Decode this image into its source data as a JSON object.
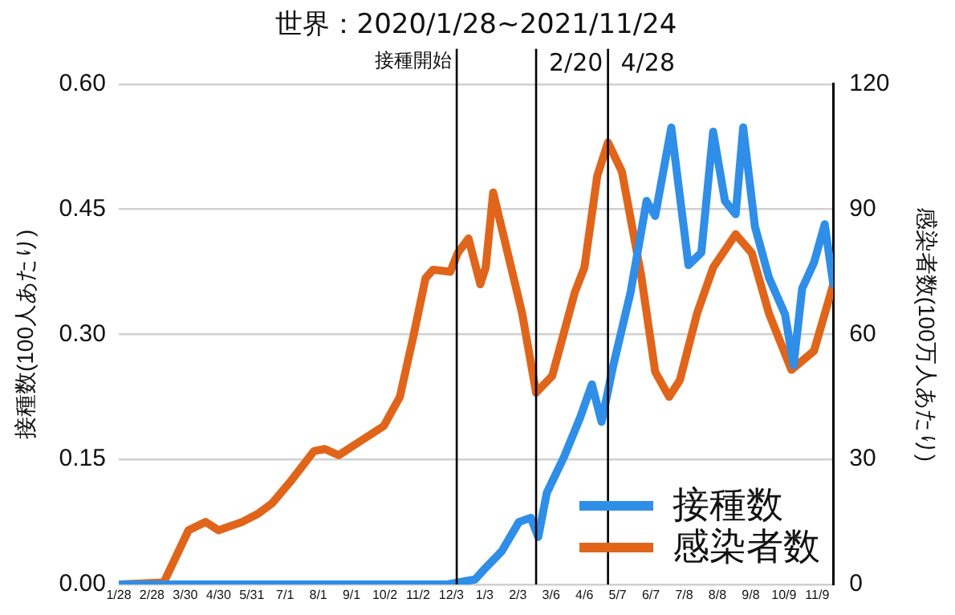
{
  "chart_data": {
    "type": "line",
    "title": "世界：2020/1/28~2021/11/24",
    "ylabel": "接種数(100人あたり)",
    "y2label": "感染者数(100万人あたり)",
    "xlim": [
      "2020-01-28",
      "2021-11-24"
    ],
    "xticks": [
      {
        "value": "2020-01-28",
        "label": "1/28"
      },
      {
        "value": "2020-02-28",
        "label": "2/28"
      },
      {
        "value": "2020-03-30",
        "label": "3/30"
      },
      {
        "value": "2020-04-30",
        "label": "4/30"
      },
      {
        "value": "2020-05-31",
        "label": "5/31"
      },
      {
        "value": "2020-07-01",
        "label": "7/1"
      },
      {
        "value": "2020-08-01",
        "label": "8/1"
      },
      {
        "value": "2020-09-01",
        "label": "9/1"
      },
      {
        "value": "2020-10-02",
        "label": "10/2"
      },
      {
        "value": "2020-11-02",
        "label": "11/2"
      },
      {
        "value": "2020-12-03",
        "label": "12/3"
      },
      {
        "value": "2021-01-03",
        "label": "1/3"
      },
      {
        "value": "2021-02-03",
        "label": "2/3"
      },
      {
        "value": "2021-03-06",
        "label": "3/6"
      },
      {
        "value": "2021-04-06",
        "label": "4/6"
      },
      {
        "value": "2021-05-07",
        "label": "5/7"
      },
      {
        "value": "2021-06-07",
        "label": "6/7"
      },
      {
        "value": "2021-07-08",
        "label": "7/8"
      },
      {
        "value": "2021-08-08",
        "label": "8/8"
      },
      {
        "value": "2021-09-08",
        "label": "9/8"
      },
      {
        "value": "2021-10-09",
        "label": "10/9"
      },
      {
        "value": "2021-11-09",
        "label": "11/9"
      }
    ],
    "ylim": [
      0,
      0.6
    ],
    "yticks": [
      {
        "value": 0,
        "label": "0.00"
      },
      {
        "value": 0.15,
        "label": "0.15"
      },
      {
        "value": 0.3,
        "label": "0.30"
      },
      {
        "value": 0.45,
        "label": "0.45"
      },
      {
        "value": 0.6,
        "label": "0.60"
      }
    ],
    "y2lim": [
      0,
      120
    ],
    "y2ticks": [
      0,
      30,
      60,
      90,
      120
    ],
    "grid": "y",
    "legend": "bottom right",
    "ref_lines": [
      {
        "axis": "x",
        "value": "2020-12-08",
        "label": "接種開始",
        "color": "#000000"
      },
      {
        "axis": "x",
        "value": "2021-02-20",
        "label": "2/20",
        "color": "#000000"
      },
      {
        "axis": "x",
        "value": "2021-04-28",
        "label": "4/28",
        "color": "#000000"
      }
    ],
    "series": [
      {
        "name": "接種数",
        "color": "#2f8ee8",
        "x": [
          "2020-01-28",
          "2020-11-29",
          "2020-12-25",
          "2021-01-04",
          "2021-01-19",
          "2021-02-04",
          "2021-02-15",
          "2021-02-22",
          "2021-03-02",
          "2021-03-18",
          "2021-04-02",
          "2021-04-13",
          "2021-04-22",
          "2021-05-03",
          "2021-05-19",
          "2021-06-03",
          "2021-06-11",
          "2021-06-26",
          "2021-07-12",
          "2021-07-24",
          "2021-08-04",
          "2021-08-15",
          "2021-08-25",
          "2021-09-01",
          "2021-09-12",
          "2021-09-25",
          "2021-10-10",
          "2021-10-18",
          "2021-10-26",
          "2021-11-06",
          "2021-11-16",
          "2021-11-24"
        ],
        "values": [
          0,
          0,
          0.006,
          0.02,
          0.04,
          0.075,
          0.08,
          0.057,
          0.11,
          0.153,
          0.2,
          0.24,
          0.195,
          0.263,
          0.35,
          0.46,
          0.442,
          0.548,
          0.383,
          0.398,
          0.543,
          0.46,
          0.444,
          0.548,
          0.429,
          0.368,
          0.324,
          0.263,
          0.355,
          0.386,
          0.432,
          0.36
        ]
      },
      {
        "name": "感染者数",
        "color": "#e0651a",
        "axis": "y2",
        "x": [
          "2020-01-28",
          "2020-03-10",
          "2020-04-02",
          "2020-04-18",
          "2020-04-30",
          "2020-05-22",
          "2020-06-06",
          "2020-06-19",
          "2020-07-07",
          "2020-07-28",
          "2020-08-07",
          "2020-08-20",
          "2020-09-07",
          "2020-10-01",
          "2020-10-16",
          "2020-10-29",
          "2020-11-09",
          "2020-11-16",
          "2020-12-02",
          "2020-12-09",
          "2020-12-19",
          "2020-12-30",
          "2021-01-04",
          "2021-01-11",
          "2021-01-25",
          "2021-02-07",
          "2021-02-20",
          "2021-03-07",
          "2021-03-28",
          "2021-04-06",
          "2021-04-18",
          "2021-04-28",
          "2021-05-11",
          "2021-05-29",
          "2021-06-11",
          "2021-06-24",
          "2021-07-04",
          "2021-07-20",
          "2021-08-04",
          "2021-08-25",
          "2021-09-09",
          "2021-09-25",
          "2021-10-16",
          "2021-11-06",
          "2021-11-24"
        ],
        "values": [
          0,
          0.5,
          13,
          15,
          13,
          15,
          17,
          19.5,
          25,
          32,
          32.5,
          31,
          34,
          38,
          45,
          60,
          73.5,
          75.5,
          75,
          79.5,
          83,
          72,
          76,
          94,
          79,
          65,
          46,
          50,
          70,
          76,
          98,
          106,
          99,
          74,
          51,
          45,
          49,
          65,
          76,
          84,
          79.5,
          65,
          51.5,
          56,
          72
        ]
      }
    ]
  }
}
